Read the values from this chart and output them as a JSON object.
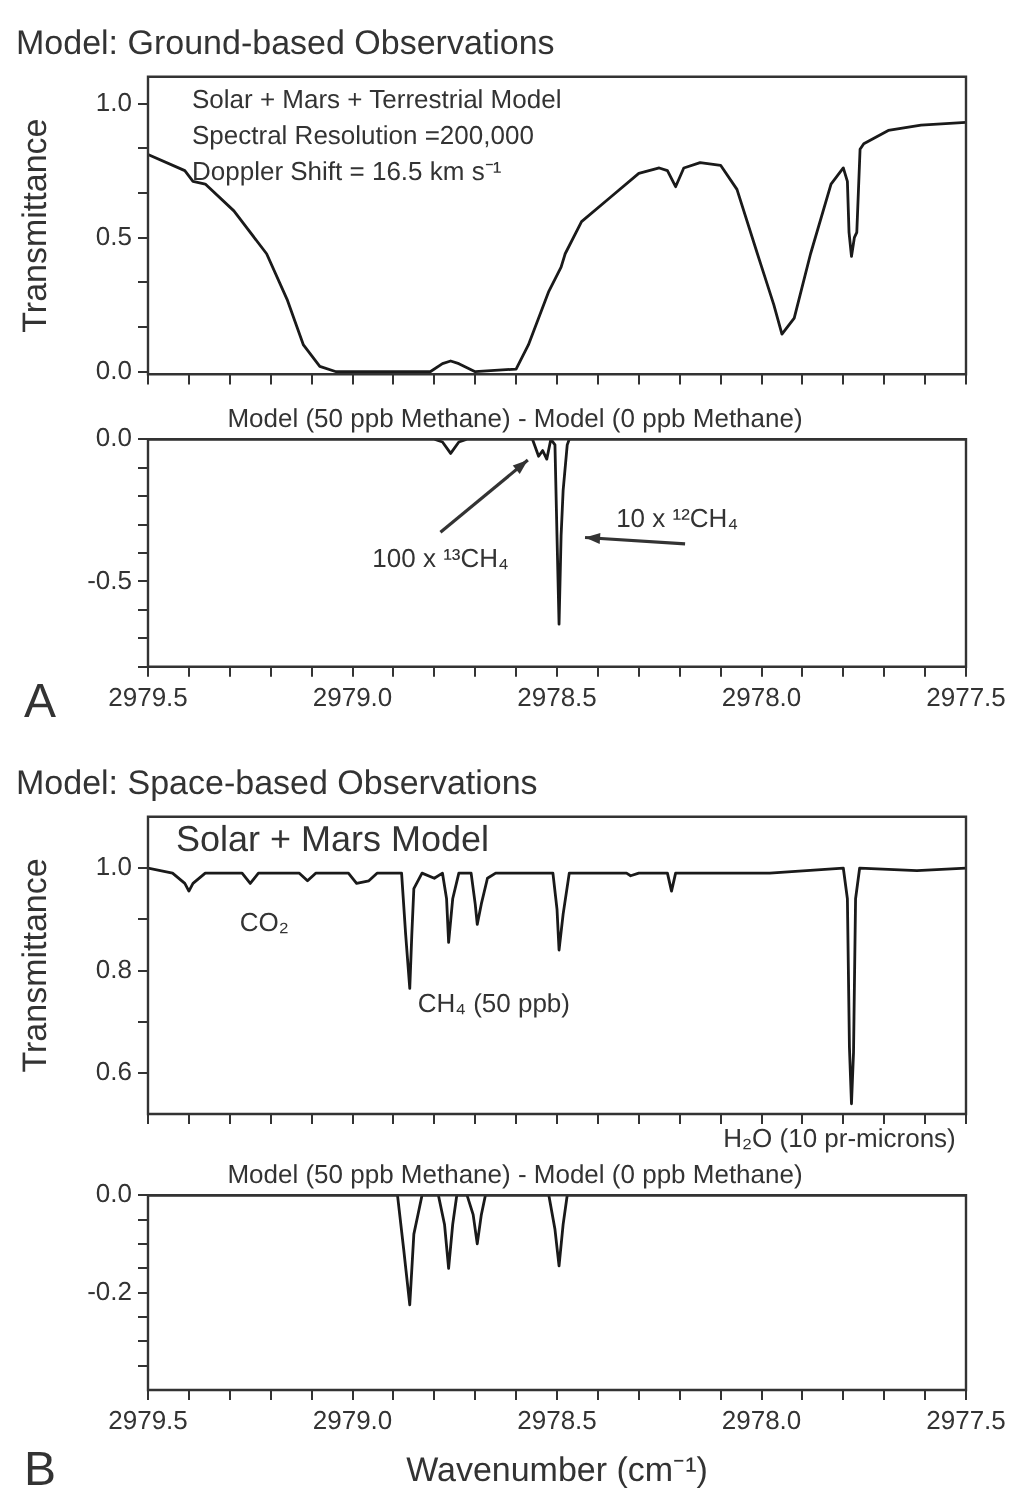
{
  "chart_data": [
    {
      "type": "line",
      "title": "Model: Ground-based Observations",
      "ylabel": "Transmittance",
      "annotations": [
        "Solar + Mars + Terrestrial Model",
        "Spectral Resolution =200,000",
        "Doppler Shift = 16.5 km s⁻¹"
      ],
      "tick_labels": "y",
      "xlim": [
        2979.5,
        2977.5
      ],
      "ylim": [
        -0.01,
        1.1
      ],
      "xticks": [
        2979.5,
        2979.4,
        2979.3,
        2979.2,
        2979.1,
        2979,
        2978.9,
        2978.8,
        2978.7,
        2978.6,
        2978.5,
        2978.4,
        2978.3,
        2978.2,
        2978.1,
        2978,
        2977.9,
        2977.8,
        2977.7,
        2977.6,
        2977.5
      ],
      "yticks": [
        {
          "value": 0,
          "label": "0.0"
        },
        {
          "value": 0.167,
          "label": null
        },
        {
          "value": 0.333,
          "label": null
        },
        {
          "value": 0.5,
          "label": "0.5"
        },
        {
          "value": 0.667,
          "label": null
        },
        {
          "value": 0.833,
          "label": null
        },
        {
          "value": 1,
          "label": "1.0"
        }
      ],
      "x": [
        2979.5,
        2979.41,
        2979.39,
        2979.36,
        2979.29,
        2979.21,
        2979.16,
        2979.12,
        2979.08,
        2979.04,
        2978.81,
        2978.78,
        2978.76,
        2978.74,
        2978.7,
        2978.6,
        2978.57,
        2978.52,
        2978.49,
        2978.48,
        2978.44,
        2978.37,
        2978.3,
        2978.25,
        2978.23,
        2978.21,
        2978.19,
        2978.15,
        2978.1,
        2978.06,
        2978.01,
        2977.97,
        2977.95,
        2977.92,
        2977.88,
        2977.83,
        2977.8,
        2977.79,
        2977.786,
        2977.78,
        2977.773,
        2977.767,
        2977.759,
        2977.75,
        2977.69,
        2977.61,
        2977.5
      ],
      "series": [
        {
          "color": "#1a1a1a",
          "values": [
            0.81,
            0.75,
            0.71,
            0.7,
            0.6,
            0.44,
            0.27,
            0.1,
            0.02,
            0,
            0,
            0.03,
            0.04,
            0.03,
            0,
            0.01,
            0.1,
            0.3,
            0.39,
            0.44,
            0.56,
            0.65,
            0.74,
            0.76,
            0.75,
            0.69,
            0.76,
            0.78,
            0.77,
            0.68,
            0.44,
            0.25,
            0.14,
            0.2,
            0.44,
            0.7,
            0.76,
            0.71,
            0.52,
            0.43,
            0.5,
            0.52,
            0.83,
            0.85,
            0.9,
            0.92,
            0.93
          ]
        }
      ]
    },
    {
      "type": "line",
      "title": "Model (50 ppb Methane) - Model (0 ppb Methane)",
      "annotations": [
        "A",
        {
          "text": "100 x ¹³CH₄",
          "x": 2978.56,
          "y": -0.06
        },
        {
          "text": "10 x ¹²CH₄",
          "x": 2978.49,
          "y": -0.34
        }
      ],
      "xlim": [
        2979.5,
        2977.5
      ],
      "ylim": [
        -0.8,
        0
      ],
      "xticks": [
        {
          "value": 2979.5,
          "label": "2979.5"
        },
        {
          "value": 2979.4,
          "label": null
        },
        {
          "value": 2979.3,
          "label": null
        },
        {
          "value": 2979.2,
          "label": null
        },
        {
          "value": 2979.1,
          "label": null
        },
        {
          "value": 2979,
          "label": "2979.0"
        },
        {
          "value": 2978.9,
          "label": null
        },
        {
          "value": 2978.8,
          "label": null
        },
        {
          "value": 2978.7,
          "label": null
        },
        {
          "value": 2978.6,
          "label": null
        },
        {
          "value": 2978.5,
          "label": "2978.5"
        },
        {
          "value": 2978.4,
          "label": null
        },
        {
          "value": 2978.3,
          "label": null
        },
        {
          "value": 2978.2,
          "label": null
        },
        {
          "value": 2978.1,
          "label": null
        },
        {
          "value": 2978,
          "label": "2978.0"
        },
        {
          "value": 2977.9,
          "label": null
        },
        {
          "value": 2977.8,
          "label": null
        },
        {
          "value": 2977.7,
          "label": null
        },
        {
          "value": 2977.6,
          "label": null
        },
        {
          "value": 2977.5,
          "label": "2977.5"
        }
      ],
      "yticks": [
        {
          "value": 0,
          "label": "0.0"
        },
        {
          "value": -0.1,
          "label": null
        },
        {
          "value": -0.2,
          "label": null
        },
        {
          "value": -0.3,
          "label": null
        },
        {
          "value": -0.4,
          "label": null
        },
        {
          "value": -0.5,
          "label": "-0.5"
        },
        {
          "value": -0.6,
          "label": null
        },
        {
          "value": -0.7,
          "label": null
        },
        {
          "value": -0.8,
          "label": null
        }
      ],
      "x": [
        2979.5,
        2978.8,
        2978.78,
        2978.76,
        2978.74,
        2978.72,
        2978.56,
        2978.545,
        2978.535,
        2978.525,
        2978.515,
        2978.505,
        2978.5,
        2978.495,
        2978.49,
        2978.485,
        2978.475,
        2978.47,
        2977.5
      ],
      "series": [
        {
          "color": "#1a1a1a",
          "values": [
            0,
            0,
            -0.01,
            -0.05,
            -0.01,
            0,
            0,
            -0.06,
            -0.04,
            -0.07,
            0,
            -0.02,
            -0.34,
            -0.65,
            -0.34,
            -0.18,
            -0.02,
            0,
            0
          ]
        }
      ]
    },
    {
      "type": "line",
      "title": "Model: Space-based Observations",
      "ylabel": "Transmittance",
      "annotations": [
        "Solar + Mars Model",
        {
          "text": "CO₂",
          "x": 2979.25,
          "y": 0.97
        },
        {
          "text": "CH₄ (50 ppb)",
          "x": 2978.86,
          "y": 0.765
        },
        {
          "text": "H₂O (10 pr-microns)",
          "x": 2977.78,
          "y": 0.54
        }
      ],
      "tick_labels": "y",
      "xlim": [
        2979.5,
        2977.5
      ],
      "ylim": [
        0.52,
        1.1
      ],
      "xticks": [
        2979.5,
        2979.4,
        2979.3,
        2979.2,
        2979.1,
        2979,
        2978.9,
        2978.8,
        2978.7,
        2978.6,
        2978.5,
        2978.4,
        2978.3,
        2978.2,
        2978.1,
        2978,
        2977.9,
        2977.8,
        2977.7,
        2977.6,
        2977.5
      ],
      "yticks": [
        {
          "value": 0.6,
          "label": "0.6"
        },
        {
          "value": 0.7,
          "label": null
        },
        {
          "value": 0.8,
          "label": "0.8"
        },
        {
          "value": 0.9,
          "label": null
        },
        {
          "value": 1,
          "label": "1.0"
        }
      ],
      "x": [
        2979.5,
        2979.44,
        2979.41,
        2979.4,
        2979.39,
        2979.36,
        2979.27,
        2979.25,
        2979.23,
        2979.13,
        2979.11,
        2979.09,
        2979.01,
        2978.99,
        2978.96,
        2978.94,
        2978.88,
        2978.87,
        2978.86,
        2978.855,
        2978.85,
        2978.83,
        2978.8,
        2978.78,
        2978.77,
        2978.765,
        2978.755,
        2978.74,
        2978.71,
        2978.7,
        2978.695,
        2978.685,
        2978.67,
        2978.65,
        2978.51,
        2978.5,
        2978.495,
        2978.485,
        2978.47,
        2978.33,
        2978.32,
        2978.3,
        2978.23,
        2978.22,
        2978.21,
        2978.18,
        2977.98,
        2977.8,
        2977.79,
        2977.785,
        2977.78,
        2977.775,
        2977.77,
        2977.76,
        2977.62,
        2977.5
      ],
      "series": [
        {
          "color": "#1a1a1a",
          "values": [
            1,
            0.99,
            0.97,
            0.955,
            0.97,
            0.99,
            0.99,
            0.97,
            0.99,
            0.99,
            0.975,
            0.99,
            0.99,
            0.97,
            0.975,
            0.99,
            0.99,
            0.87,
            0.765,
            0.87,
            0.96,
            0.99,
            0.98,
            0.99,
            0.94,
            0.855,
            0.94,
            0.99,
            0.99,
            0.93,
            0.89,
            0.93,
            0.98,
            0.99,
            0.99,
            0.92,
            0.84,
            0.91,
            0.99,
            0.99,
            0.985,
            0.99,
            0.99,
            0.955,
            0.99,
            0.99,
            0.99,
            1,
            0.94,
            0.65,
            0.54,
            0.64,
            0.94,
            1,
            0.995,
            1
          ]
        }
      ]
    },
    {
      "type": "line",
      "title": "Model (50 ppb Methane) - Model (0 ppb Methane)",
      "xlabel": "Wavenumber (cm⁻¹)",
      "annotations": [
        "B"
      ],
      "xlim": [
        2979.5,
        2977.5
      ],
      "ylim": [
        -0.4,
        0
      ],
      "xticks": [
        {
          "value": 2979.5,
          "label": "2979.5"
        },
        {
          "value": 2979.4,
          "label": null
        },
        {
          "value": 2979.3,
          "label": null
        },
        {
          "value": 2979.2,
          "label": null
        },
        {
          "value": 2979.1,
          "label": null
        },
        {
          "value": 2979,
          "label": "2979.0"
        },
        {
          "value": 2978.9,
          "label": null
        },
        {
          "value": 2978.8,
          "label": null
        },
        {
          "value": 2978.7,
          "label": null
        },
        {
          "value": 2978.6,
          "label": null
        },
        {
          "value": 2978.5,
          "label": "2978.5"
        },
        {
          "value": 2978.4,
          "label": null
        },
        {
          "value": 2978.3,
          "label": null
        },
        {
          "value": 2978.2,
          "label": null
        },
        {
          "value": 2978.1,
          "label": null
        },
        {
          "value": 2978,
          "label": "2978.0"
        },
        {
          "value": 2977.9,
          "label": null
        },
        {
          "value": 2977.8,
          "label": null
        },
        {
          "value": 2977.7,
          "label": null
        },
        {
          "value": 2977.6,
          "label": null
        },
        {
          "value": 2977.5,
          "label": "2977.5"
        }
      ],
      "yticks": [
        {
          "value": 0,
          "label": "0.0"
        },
        {
          "value": -0.05,
          "label": null
        },
        {
          "value": -0.1,
          "label": null
        },
        {
          "value": -0.15,
          "label": null
        },
        {
          "value": -0.2,
          "label": "-0.2"
        },
        {
          "value": -0.25,
          "label": null
        },
        {
          "value": -0.3,
          "label": null
        },
        {
          "value": -0.35,
          "label": null
        }
      ],
      "x": [
        2979.5,
        2978.89,
        2978.875,
        2978.86,
        2978.85,
        2978.84,
        2978.83,
        2978.79,
        2978.775,
        2978.765,
        2978.755,
        2978.745,
        2978.72,
        2978.705,
        2978.695,
        2978.685,
        2978.675,
        2978.52,
        2978.505,
        2978.495,
        2978.485,
        2978.475,
        2977.5
      ],
      "series": [
        {
          "color": "#1a1a1a",
          "values": [
            0,
            0,
            -0.11,
            -0.225,
            -0.08,
            -0.04,
            0,
            0,
            -0.06,
            -0.15,
            -0.06,
            0,
            0,
            -0.04,
            -0.1,
            -0.04,
            0,
            0,
            -0.07,
            -0.145,
            -0.06,
            0,
            0
          ]
        }
      ]
    }
  ]
}
